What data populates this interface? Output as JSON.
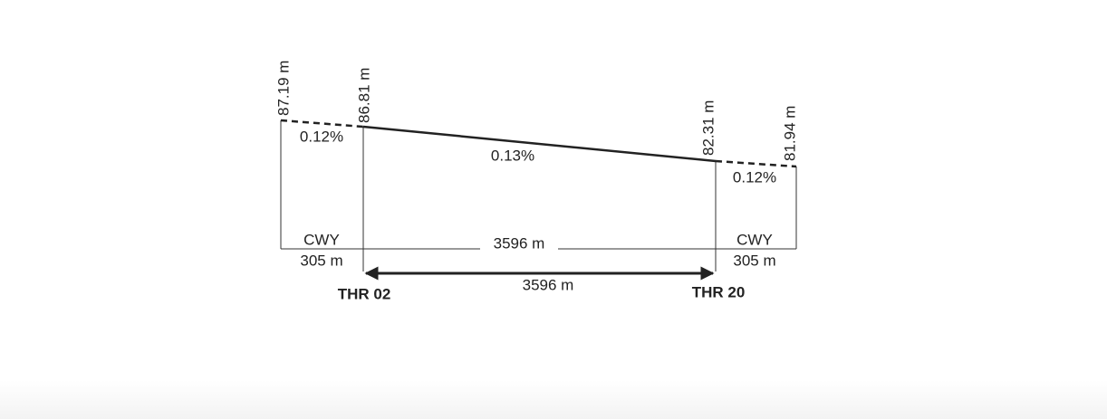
{
  "elevations": [
    "87.19 m",
    "86.81 m",
    "82.31 m",
    "81.94 m"
  ],
  "slopes": [
    "0.12%",
    "0.13%",
    "0.12%"
  ],
  "clearways": [
    {
      "label": "CWY",
      "length": "305 m"
    },
    {
      "label": "CWY",
      "length": "305 m"
    }
  ],
  "runway_length": "3596 m",
  "arrow_length": "3596 m",
  "thresholds": [
    "THR 02",
    "THR 20"
  ]
}
